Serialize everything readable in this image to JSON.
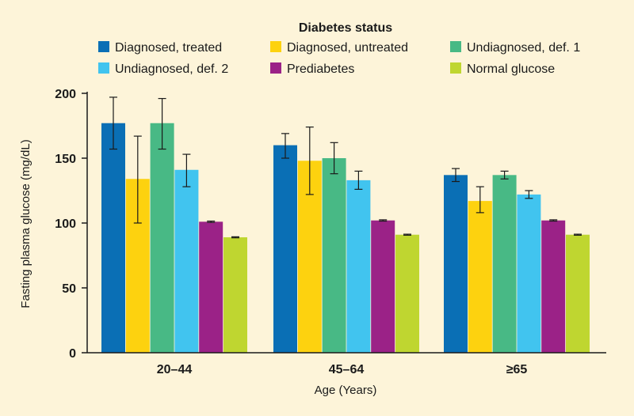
{
  "chart_data": {
    "type": "bar",
    "legend_title": "Diabetes status",
    "legend_position": "top",
    "xlabel": "Age (Years)",
    "ylabel": "Fasting plasma glucose (mg/dL)",
    "ylim": [
      0,
      200
    ],
    "yticks": [
      0,
      50,
      100,
      150,
      200
    ],
    "categories": [
      "20–44",
      "45–64",
      "≥65"
    ],
    "series": [
      {
        "name": "Diagnosed, treated",
        "color": "#0a6fb5",
        "values": [
          177,
          160,
          137
        ],
        "error_low": [
          157,
          150,
          132
        ],
        "error_high": [
          197,
          169,
          142
        ]
      },
      {
        "name": "Diagnosed, untreated",
        "color": "#fdd20f",
        "values": [
          134,
          148,
          117
        ],
        "error_low": [
          100,
          122,
          108
        ],
        "error_high": [
          167,
          174,
          128
        ]
      },
      {
        "name": "Undiagnosed, def. 1",
        "color": "#48b985",
        "values": [
          177,
          150,
          137
        ],
        "error_low": [
          157,
          138,
          134
        ],
        "error_high": [
          196,
          162,
          140
        ]
      },
      {
        "name": "Undiagnosed, def. 2",
        "color": "#41c4ef",
        "values": [
          141,
          133,
          122
        ],
        "error_low": [
          128,
          126,
          119
        ],
        "error_high": [
          153,
          140,
          125
        ]
      },
      {
        "name": "Prediabetes",
        "color": "#9b2287",
        "values": [
          101,
          102,
          102
        ],
        "error_low": [
          100.5,
          101.5,
          101.5
        ],
        "error_high": [
          101.5,
          102.5,
          102.5
        ]
      },
      {
        "name": "Normal glucose",
        "color": "#bfd630",
        "values": [
          89,
          91,
          91
        ],
        "error_low": [
          88.6,
          90.6,
          90.6
        ],
        "error_high": [
          89.4,
          91.4,
          91.4
        ]
      }
    ]
  }
}
